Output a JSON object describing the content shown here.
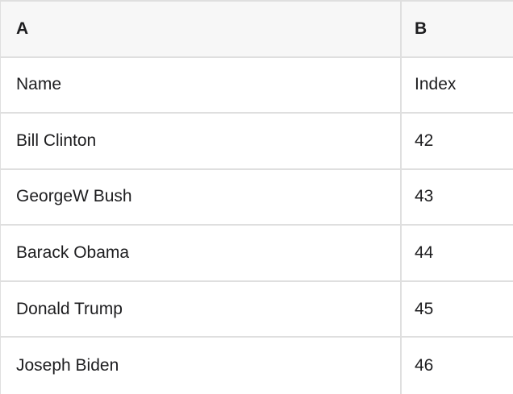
{
  "table": {
    "header": {
      "col_a": "A",
      "col_b": "B"
    },
    "rows": [
      {
        "a": "Name",
        "b": "Index"
      },
      {
        "a": "Bill Clinton",
        "b": "42"
      },
      {
        "a": "GeorgeW Bush",
        "b": "43"
      },
      {
        "a": "Barack Obama",
        "b": "44"
      },
      {
        "a": "Donald Trump",
        "b": "45"
      },
      {
        "a": "Joseph Biden",
        "b": "46"
      }
    ]
  },
  "colors": {
    "header_background": "#f7f7f7",
    "row_background": "#ffffff",
    "border": "#dfdfdf",
    "text": "#1d1d1f"
  }
}
